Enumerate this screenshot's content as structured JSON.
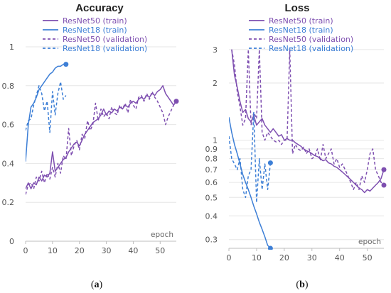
{
  "colors": {
    "purple": "#7e4fb0",
    "blue": "#3d7fd6",
    "grid": "#e6e6e6",
    "axis": "#bdbdbd"
  },
  "chart_data": [
    {
      "type": "line",
      "title": "Accuracy",
      "caption": "(a)",
      "xlabel": "epoch",
      "ylabel": "",
      "xlim": [
        0,
        56
      ],
      "ylim": [
        0,
        1
      ],
      "xticks": [
        "0",
        "10",
        "20",
        "30",
        "40",
        "50"
      ],
      "yticks": [
        "0",
        "0.2",
        "0.4",
        "0.6",
        "0.8",
        "1"
      ],
      "legend": [
        "ResNet50 (train)",
        "ResNet18 (train)",
        "ResNet50 (validation)",
        "ResNet18 (validation)"
      ],
      "series": [
        {
          "name": "ResNet50 (train)",
          "color": "purple",
          "dash": false,
          "end_marker": true,
          "x": [
            0,
            1,
            2,
            3,
            4,
            5,
            6,
            7,
            8,
            9,
            10,
            11,
            12,
            13,
            14,
            15,
            16,
            17,
            18,
            19,
            20,
            21,
            22,
            23,
            24,
            25,
            26,
            27,
            28,
            29,
            30,
            31,
            32,
            33,
            34,
            35,
            36,
            37,
            38,
            39,
            40,
            41,
            42,
            43,
            44,
            45,
            46,
            47,
            48,
            49,
            50,
            51,
            52,
            53,
            54,
            55,
            56
          ],
          "y": [
            0.27,
            0.3,
            0.27,
            0.3,
            0.29,
            0.33,
            0.31,
            0.34,
            0.33,
            0.35,
            0.46,
            0.36,
            0.38,
            0.4,
            0.42,
            0.43,
            0.46,
            0.48,
            0.5,
            0.51,
            0.49,
            0.52,
            0.55,
            0.57,
            0.59,
            0.61,
            0.62,
            0.63,
            0.65,
            0.68,
            0.65,
            0.67,
            0.66,
            0.68,
            0.67,
            0.69,
            0.68,
            0.7,
            0.69,
            0.71,
            0.72,
            0.71,
            0.73,
            0.74,
            0.73,
            0.75,
            0.74,
            0.76,
            0.75,
            0.77,
            0.78,
            0.8,
            0.76,
            0.74,
            0.72,
            0.7,
            0.72
          ]
        },
        {
          "name": "ResNet18 (train)",
          "color": "blue",
          "dash": false,
          "end_marker": true,
          "x": [
            0,
            1,
            2,
            3,
            4,
            5,
            6,
            7,
            8,
            9,
            10,
            11,
            12,
            13,
            14,
            15
          ],
          "y": [
            0.41,
            0.6,
            0.69,
            0.71,
            0.74,
            0.78,
            0.8,
            0.82,
            0.84,
            0.86,
            0.87,
            0.89,
            0.9,
            0.9,
            0.91,
            0.91
          ]
        },
        {
          "name": "ResNet50 (validation)",
          "color": "purple",
          "dash": true,
          "end_marker": false,
          "x": [
            0,
            1,
            2,
            3,
            4,
            5,
            6,
            7,
            8,
            9,
            10,
            11,
            12,
            13,
            14,
            15,
            16,
            17,
            18,
            19,
            20,
            21,
            22,
            23,
            24,
            25,
            26,
            27,
            28,
            29,
            30,
            31,
            32,
            33,
            34,
            35,
            36,
            37,
            38,
            39,
            40,
            41,
            42,
            43,
            44,
            45,
            46,
            47,
            48,
            49,
            50,
            51,
            52,
            53,
            54,
            55,
            56
          ],
          "y": [
            0.24,
            0.29,
            0.3,
            0.27,
            0.33,
            0.31,
            0.36,
            0.3,
            0.35,
            0.32,
            0.38,
            0.33,
            0.4,
            0.35,
            0.44,
            0.42,
            0.58,
            0.44,
            0.49,
            0.52,
            0.47,
            0.55,
            0.53,
            0.62,
            0.57,
            0.6,
            0.71,
            0.62,
            0.68,
            0.64,
            0.66,
            0.63,
            0.69,
            0.66,
            0.65,
            0.7,
            0.68,
            0.71,
            0.66,
            0.73,
            0.7,
            0.68,
            0.74,
            0.75,
            0.72,
            0.76,
            0.73,
            0.77,
            0.74,
            0.72,
            0.69,
            0.66,
            0.6,
            0.64,
            0.67,
            0.7,
            0.72
          ]
        },
        {
          "name": "ResNet18 (validation)",
          "color": "blue",
          "dash": true,
          "end_marker": false,
          "x": [
            0,
            1,
            2,
            3,
            4,
            5,
            6,
            7,
            8,
            9,
            10,
            11,
            12,
            13,
            14,
            15
          ],
          "y": [
            0.57,
            0.62,
            0.63,
            0.7,
            0.75,
            0.8,
            0.76,
            0.67,
            0.72,
            0.56,
            0.77,
            0.65,
            0.76,
            0.82,
            0.73,
            0.75
          ]
        }
      ]
    },
    {
      "type": "line",
      "title": "Loss",
      "caption": "(b)",
      "xlabel": "epoch",
      "ylabel": "",
      "yscale": "log",
      "xlim": [
        0,
        56
      ],
      "ylim": [
        0.27,
        3.1
      ],
      "xticks": [
        "0",
        "10",
        "20",
        "30",
        "40",
        "50"
      ],
      "yticks": [
        "0.3",
        "0.4",
        "0.5",
        "0.6",
        "0.7",
        "0.8",
        "0.9",
        "1",
        "2",
        "3"
      ],
      "legend": [
        "ResNet50 (train)",
        "ResNet18 (train)",
        "ResNet50 (validation)",
        "ResNet18 (validation)"
      ],
      "series": [
        {
          "name": "ResNet50 (train)",
          "color": "purple",
          "dash": false,
          "end_marker": true,
          "x": [
            1,
            2,
            3,
            4,
            5,
            6,
            7,
            8,
            9,
            10,
            11,
            12,
            13,
            14,
            15,
            16,
            17,
            18,
            19,
            20,
            21,
            22,
            23,
            24,
            25,
            26,
            27,
            28,
            29,
            30,
            31,
            32,
            33,
            34,
            35,
            36,
            37,
            38,
            39,
            40,
            41,
            42,
            43,
            44,
            45,
            46,
            47,
            48,
            49,
            50,
            51,
            52,
            53,
            54,
            55,
            56
          ],
          "y": [
            3.0,
            2.2,
            1.9,
            1.6,
            1.4,
            1.45,
            1.3,
            1.25,
            1.35,
            1.2,
            1.25,
            1.3,
            1.2,
            1.15,
            1.1,
            1.15,
            1.1,
            1.05,
            1.07,
            1.0,
            1.02,
            1.0,
            1.0,
            0.97,
            0.95,
            0.93,
            0.9,
            0.88,
            0.87,
            0.85,
            0.83,
            0.82,
            0.8,
            0.78,
            0.79,
            0.76,
            0.75,
            0.73,
            0.72,
            0.7,
            0.68,
            0.66,
            0.64,
            0.62,
            0.6,
            0.58,
            0.56,
            0.55,
            0.53,
            0.55,
            0.54,
            0.56,
            0.58,
            0.6,
            0.63,
            0.7
          ]
        },
        {
          "name": "ResNet18 (train)",
          "color": "blue",
          "dash": false,
          "end_marker": true,
          "x": [
            0,
            1,
            2,
            3,
            4,
            5,
            6,
            7,
            8,
            9,
            10,
            11,
            12,
            13,
            14,
            15
          ],
          "y": [
            1.32,
            1.1,
            0.95,
            0.85,
            0.75,
            0.66,
            0.6,
            0.55,
            0.5,
            0.45,
            0.41,
            0.37,
            0.34,
            0.31,
            0.28,
            0.27
          ]
        },
        {
          "name": "ResNet50 (validation)",
          "color": "purple",
          "dash": true,
          "end_marker": true,
          "x": [
            1,
            2,
            3,
            4,
            5,
            6,
            7,
            8,
            9,
            10,
            11,
            12,
            13,
            14,
            15,
            16,
            17,
            18,
            19,
            20,
            21,
            22,
            23,
            24,
            25,
            26,
            27,
            28,
            29,
            30,
            31,
            32,
            33,
            34,
            35,
            36,
            37,
            38,
            39,
            40,
            41,
            42,
            43,
            44,
            45,
            46,
            47,
            48,
            49,
            50,
            51,
            52,
            53,
            54,
            55,
            56
          ],
          "y": [
            3.0,
            2.5,
            1.8,
            1.5,
            1.2,
            1.3,
            3.0,
            1.2,
            1.4,
            1.3,
            3.0,
            1.1,
            1.0,
            1.1,
            1.05,
            1.0,
            0.98,
            1.0,
            0.95,
            1.0,
            1.0,
            3.0,
            0.85,
            0.95,
            0.9,
            0.88,
            0.92,
            0.85,
            0.9,
            0.8,
            0.82,
            0.9,
            0.78,
            0.95,
            0.8,
            0.85,
            0.9,
            0.75,
            0.8,
            0.72,
            0.75,
            0.7,
            0.65,
            0.6,
            0.55,
            0.6,
            0.55,
            0.65,
            0.6,
            0.7,
            0.85,
            0.9,
            0.7,
            0.65,
            0.6,
            0.58
          ]
        },
        {
          "name": "ResNet18 (validation)",
          "color": "blue",
          "dash": true,
          "end_marker": true,
          "x": [
            0,
            1,
            2,
            3,
            4,
            5,
            6,
            7,
            8,
            9,
            10,
            11,
            12,
            13,
            14,
            15
          ],
          "y": [
            1.05,
            0.8,
            0.75,
            0.7,
            0.8,
            0.55,
            0.5,
            0.65,
            0.7,
            1.4,
            0.47,
            0.8,
            0.55,
            0.75,
            0.55,
            0.76
          ]
        }
      ]
    }
  ]
}
